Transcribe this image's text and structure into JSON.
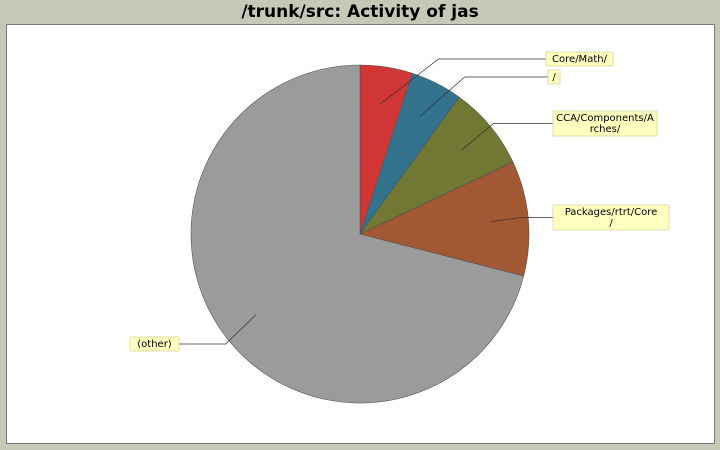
{
  "chart_data": {
    "type": "pie",
    "title": "/trunk/src: Activity of jas",
    "slices": [
      {
        "label": "Core/Math/",
        "label_lines": [
          "Core/Math/"
        ],
        "value": 5.0,
        "color": "#d03636"
      },
      {
        "label": "/",
        "label_lines": [
          "/"
        ],
        "value": 5.0,
        "color": "#33728c"
      },
      {
        "label": "CCA/Components/Arches/",
        "label_lines": [
          "CCA/Components/A",
          "rches/"
        ],
        "value": 8.0,
        "color": "#717834"
      },
      {
        "label": "Packages/rtrt/Core/",
        "label_lines": [
          "Packages/rtrt/Core",
          "/"
        ],
        "value": 11.0,
        "color": "#a25832"
      },
      {
        "label": "(other)",
        "label_lines": [
          "(other)"
        ],
        "value": 71.0,
        "color": "#9b9b9b"
      }
    ],
    "legend": "none",
    "label_style": "callout"
  }
}
